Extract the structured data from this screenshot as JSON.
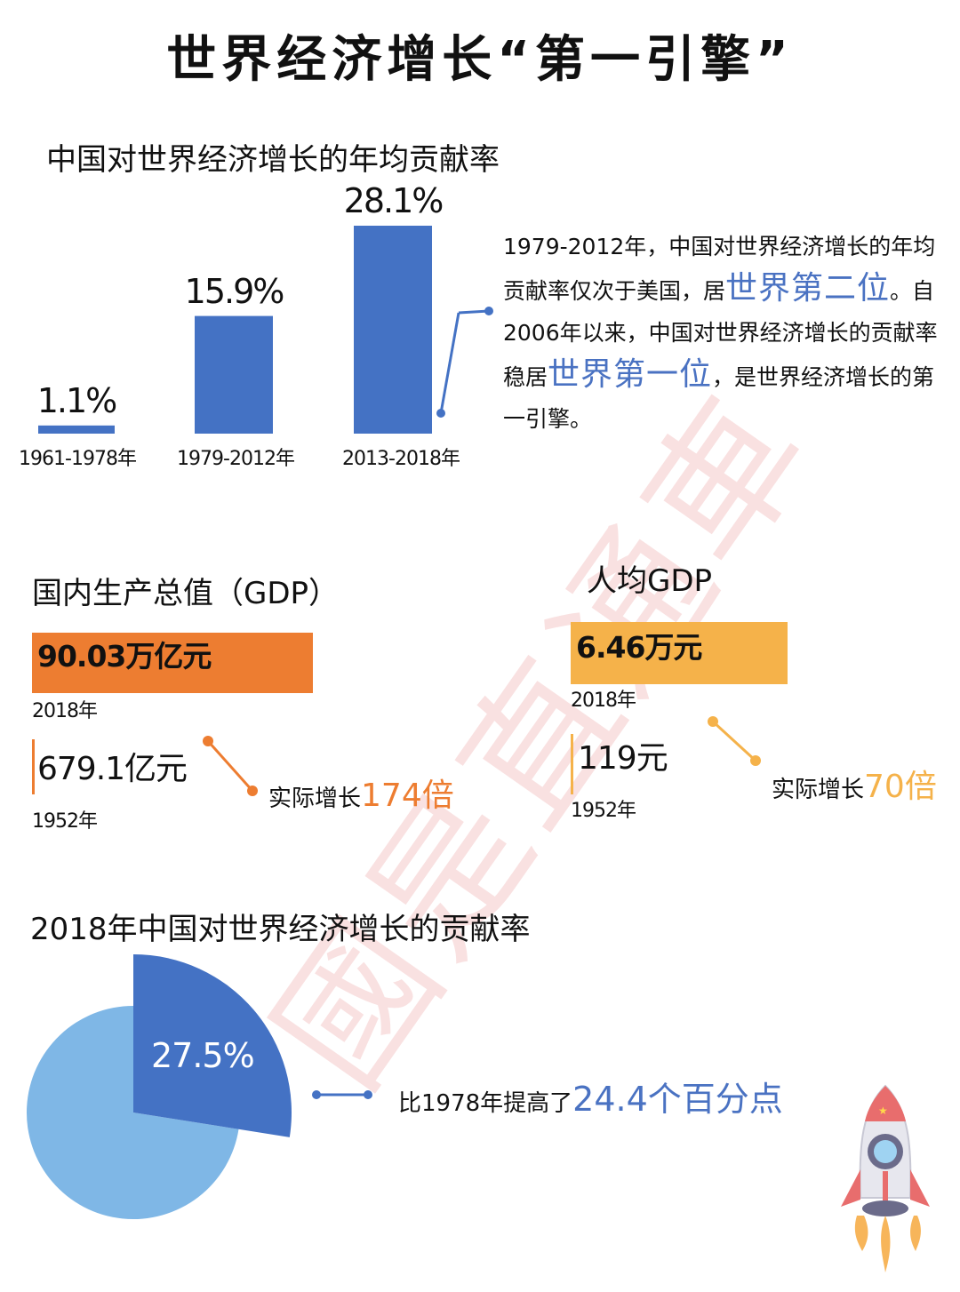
{
  "title": "世界经济增长“第一引擎”",
  "contribution_section": {
    "title": "中国对世界经济增长的年均贡献率",
    "bars": [
      {
        "period": "1961-1978年",
        "label": "1.1%"
      },
      {
        "period": "1979-2012年",
        "label": "15.9%"
      },
      {
        "period": "2013-2018年",
        "label": "28.1%"
      }
    ],
    "note": {
      "p1": "1979-2012年，中国对世界经济增长的年均贡献率仅次于美国，居",
      "h1": "世界第二位",
      "p2": "。自2006年以来，中国对世界经济增长的贡献率稳居",
      "h2": "世界第一位",
      "p3": "，是世界经济增长的第一引擎。"
    }
  },
  "gdp_section": {
    "title": "国内生产总值（GDP）",
    "current_value": "90.03万亿元",
    "current_year": "2018年",
    "past_value": "679.1亿元",
    "past_year": "1952年",
    "growth_prefix": "实际增长",
    "growth_value": "174倍"
  },
  "per_capita_section": {
    "title": "人均GDP",
    "current_value": "6.46万元",
    "current_year": "2018年",
    "past_value": "119元",
    "past_year": "1952年",
    "growth_prefix": "实际增长",
    "growth_value": "70倍"
  },
  "share_section": {
    "title": "2018年中国对世界经济增长的贡献率",
    "pie_label": "27.5%",
    "compare_prefix": "比1978年提高了",
    "compare_value": "24.4个百分点"
  },
  "watermark": "國是直通車",
  "colors": {
    "blue": "#4472c4",
    "light_blue": "#7fb7e6",
    "orange": "#ed7d31",
    "yellow": "#f5b24a"
  },
  "chart_data": [
    {
      "type": "bar",
      "title": "中国对世界经济增长的年均贡献率",
      "categories": [
        "1961-1978年",
        "1979-2012年",
        "2013-2018年"
      ],
      "values": [
        1.1,
        15.9,
        28.1
      ],
      "unit": "%"
    },
    {
      "type": "bar",
      "title": "国内生产总值（GDP）",
      "categories": [
        "2018年",
        "1952年"
      ],
      "values": [
        900300,
        679.1
      ],
      "unit": "亿元"
    },
    {
      "type": "bar",
      "title": "人均GDP",
      "categories": [
        "2018年",
        "1952年"
      ],
      "values": [
        64600,
        119
      ],
      "unit": "元"
    },
    {
      "type": "pie",
      "title": "2018年中国对世界经济增长的贡献率",
      "values": [
        27.5,
        72.5
      ],
      "unit": "%"
    }
  ]
}
